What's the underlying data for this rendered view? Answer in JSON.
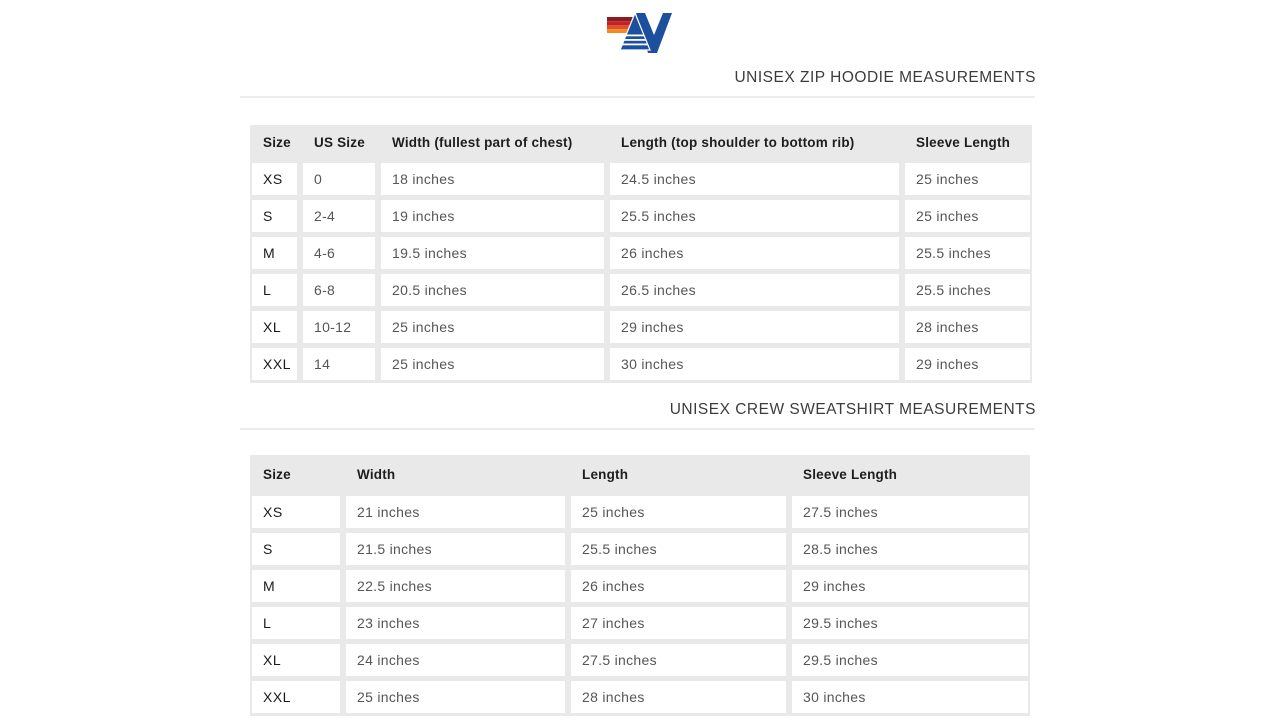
{
  "logo": {
    "brand": "aviator-nation",
    "stripe_colors": [
      "#8e1a1d",
      "#c22127",
      "#e04f27",
      "#f18a21"
    ],
    "monogram_color": "#1d4f9f"
  },
  "colors": {
    "page_background": "#ffffff",
    "table_background": "#e9e9e9",
    "cell_background": "#ffffff",
    "title_text": "#3c3c3c",
    "header_text": "#1e1e1e",
    "cell_text": "#565656",
    "divider": "#ededed"
  },
  "sections": [
    {
      "title": "UNISEX ZIP HOODIE MEASUREMENTS",
      "columns": [
        "Size",
        "US Size",
        "Width (fullest part of chest)",
        "Length (top shoulder to bottom rib)",
        "Sleeve Length"
      ],
      "rows": [
        [
          "XS",
          "0",
          "18 inches",
          "24.5 inches",
          "25 inches"
        ],
        [
          "S",
          "2-4",
          "19 inches",
          "25.5 inches",
          "25 inches"
        ],
        [
          "M",
          "4-6",
          "19.5 inches",
          "26 inches",
          "25.5 inches"
        ],
        [
          "L",
          "6-8",
          "20.5 inches",
          "26.5 inches",
          "25.5 inches"
        ],
        [
          "XL",
          "10-12",
          "25 inches",
          "29 inches",
          "28 inches"
        ],
        [
          "XXL",
          "14",
          "25 inches",
          "30 inches",
          "29 inches"
        ]
      ]
    },
    {
      "title": "UNISEX CREW SWEATSHIRT MEASUREMENTS",
      "columns": [
        "Size",
        "Width",
        "Length",
        "Sleeve Length"
      ],
      "rows": [
        [
          "XS",
          "21 inches",
          "25 inches",
          "27.5 inches"
        ],
        [
          "S",
          "21.5 inches",
          "25.5 inches",
          "28.5 inches"
        ],
        [
          "M",
          "22.5 inches",
          "26 inches",
          "29 inches"
        ],
        [
          "L",
          "23 inches",
          "27 inches",
          "29.5 inches"
        ],
        [
          "XL",
          "24 inches",
          "27.5 inches",
          "29.5 inches"
        ],
        [
          "XXL",
          "25 inches",
          "28 inches",
          "30 inches"
        ]
      ]
    }
  ]
}
